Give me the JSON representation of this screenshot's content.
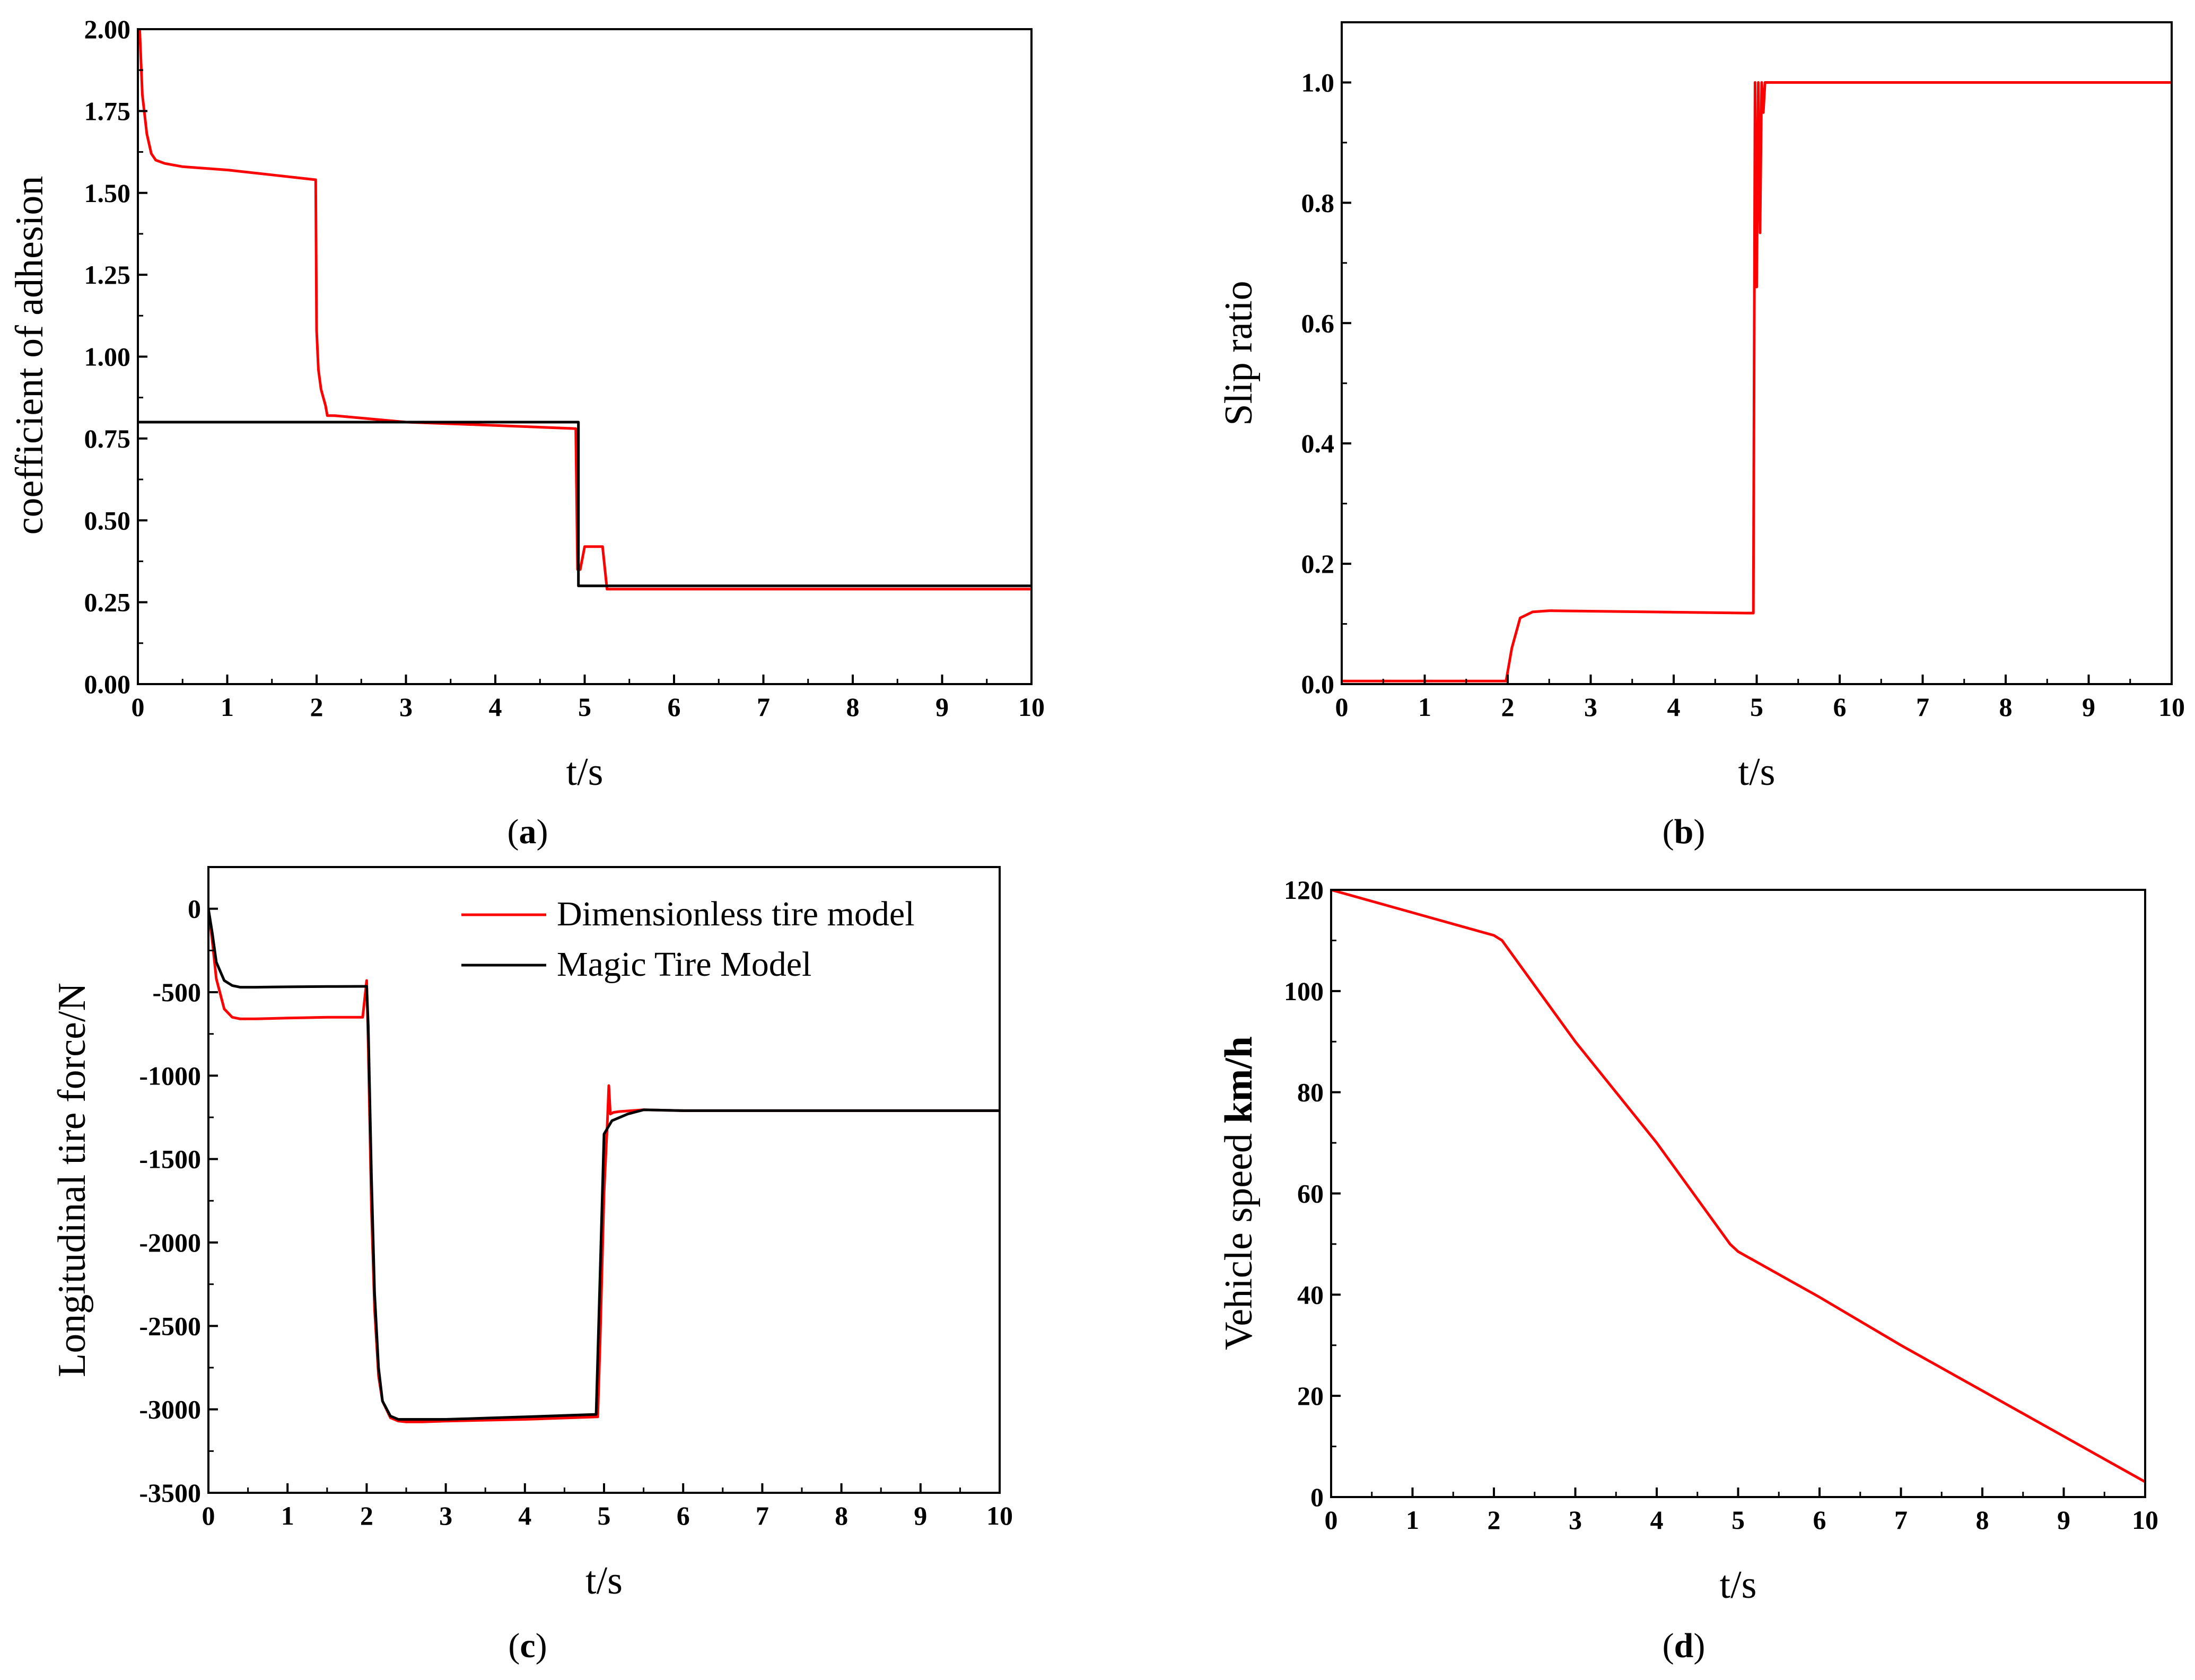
{
  "chart_data": [
    {
      "type": "line",
      "panel": "a",
      "caption_letter": "a",
      "xlabel": "t/s",
      "ylabel": "coefficient of adhesion",
      "xlim": [
        0,
        10
      ],
      "ylim": [
        0,
        2.0
      ],
      "xticks": [
        "0",
        "1",
        "2",
        "3",
        "4",
        "5",
        "6",
        "7",
        "8",
        "9",
        "10"
      ],
      "yticks": [
        "0.00",
        "0.25",
        "0.50",
        "0.75",
        "1.00",
        "1.25",
        "1.50",
        "1.75",
        "2.00"
      ],
      "series": [
        {
          "name": "Dimensionless tire model",
          "color": "#ff0000",
          "x": [
            0,
            0.02,
            0.05,
            0.1,
            0.15,
            0.2,
            0.3,
            0.5,
            1.0,
            1.5,
            1.99,
            2.0,
            2.02,
            2.05,
            2.1,
            2.12,
            2.2,
            3.0,
            4.0,
            4.9,
            4.92,
            4.95,
            5.0,
            5.1,
            5.2,
            5.25,
            6,
            7,
            8,
            9,
            10
          ],
          "y": [
            2.0,
            2.0,
            1.8,
            1.68,
            1.62,
            1.6,
            1.59,
            1.58,
            1.57,
            1.555,
            1.54,
            1.08,
            0.96,
            0.9,
            0.85,
            0.82,
            0.82,
            0.8,
            0.79,
            0.78,
            0.35,
            0.35,
            0.42,
            0.42,
            0.42,
            0.29,
            0.29,
            0.29,
            0.29,
            0.29,
            0.29
          ]
        },
        {
          "name": "Magic Tire Model",
          "color": "#000000",
          "x": [
            0,
            4.93,
            4.93,
            10
          ],
          "y": [
            0.8,
            0.8,
            0.3,
            0.3
          ]
        }
      ]
    },
    {
      "type": "line",
      "panel": "b",
      "caption_letter": "b",
      "xlabel": "t/s",
      "ylabel": "Slip ratio",
      "xlim": [
        0,
        10
      ],
      "ylim": [
        0,
        1.1
      ],
      "xticks": [
        "0",
        "1",
        "2",
        "3",
        "4",
        "5",
        "6",
        "7",
        "8",
        "9",
        "10"
      ],
      "yticks": [
        "0.0",
        "0.2",
        "0.4",
        "0.6",
        "0.8",
        "1.0"
      ],
      "series": [
        {
          "name": "Slip ratio",
          "color": "#ff0000",
          "x": [
            0,
            1.98,
            2.05,
            2.15,
            2.3,
            2.5,
            4.9,
            4.96,
            4.98,
            5.0,
            5.02,
            5.04,
            5.06,
            5.08,
            5.1,
            5.2,
            10
          ],
          "y": [
            0.005,
            0.005,
            0.06,
            0.11,
            0.12,
            0.122,
            0.118,
            0.118,
            1.0,
            0.66,
            1.0,
            0.75,
            1.0,
            0.95,
            1.0,
            1.0,
            1.0
          ]
        }
      ]
    },
    {
      "type": "line",
      "panel": "c",
      "caption_letter": "c",
      "xlabel": "t/s",
      "ylabel": "Longitudinal tire force/N",
      "xlim": [
        0,
        10
      ],
      "ylim": [
        -3500,
        250
      ],
      "xticks": [
        "0",
        "1",
        "2",
        "3",
        "4",
        "5",
        "6",
        "7",
        "8",
        "9",
        "10"
      ],
      "yticks": [
        "0",
        "-500",
        "-1000",
        "-1500",
        "-2000",
        "-2500",
        "-3000",
        "-3500"
      ],
      "legend": {
        "position": "top-right",
        "entries": [
          "Dimensionless tire model",
          "Magic Tire Model"
        ]
      },
      "series": [
        {
          "name": "Dimensionless tire model",
          "color": "#ff0000",
          "x": [
            0,
            0.05,
            0.1,
            0.2,
            0.3,
            0.4,
            0.6,
            1.0,
            1.5,
            1.95,
            2.0,
            2.02,
            2.06,
            2.1,
            2.15,
            2.2,
            2.3,
            2.4,
            2.5,
            2.7,
            3.0,
            4.0,
            4.92,
            4.95,
            5.0,
            5.04,
            5.06,
            5.08,
            5.12,
            5.2,
            5.5,
            6,
            7,
            8,
            9,
            10
          ],
          "y": [
            0,
            -200,
            -420,
            -600,
            -650,
            -660,
            -660,
            -655,
            -650,
            -650,
            -430,
            -820,
            -1800,
            -2400,
            -2800,
            -2950,
            -3050,
            -3070,
            -3075,
            -3075,
            -3070,
            -3060,
            -3045,
            -2600,
            -1700,
            -1300,
            -1060,
            -1230,
            -1220,
            -1215,
            -1205,
            -1210,
            -1210,
            -1210,
            -1210,
            -1210
          ]
        },
        {
          "name": "Magic Tire Model",
          "color": "#000000",
          "x": [
            0,
            0.05,
            0.1,
            0.2,
            0.3,
            0.4,
            0.6,
            1.0,
            1.5,
            1.95,
            2.0,
            2.02,
            2.06,
            2.1,
            2.15,
            2.2,
            2.3,
            2.4,
            2.5,
            3.0,
            4.0,
            4.9,
            4.95,
            5.0,
            5.1,
            5.3,
            5.5,
            6,
            7,
            8,
            9,
            10
          ],
          "y": [
            0,
            -150,
            -320,
            -430,
            -460,
            -470,
            -470,
            -468,
            -466,
            -465,
            -465,
            -700,
            -1600,
            -2300,
            -2750,
            -2950,
            -3040,
            -3060,
            -3060,
            -3060,
            -3045,
            -3030,
            -2200,
            -1350,
            -1270,
            -1230,
            -1205,
            -1210,
            -1210,
            -1210,
            -1210,
            -1210
          ]
        }
      ]
    },
    {
      "type": "line",
      "panel": "d",
      "caption_letter": "d",
      "xlabel": "t/s",
      "ylabel_regular": "Vehicle speed ",
      "ylabel_bold": "km/h",
      "xlim": [
        0,
        10
      ],
      "ylim": [
        0,
        120
      ],
      "xticks": [
        "0",
        "1",
        "2",
        "3",
        "4",
        "5",
        "6",
        "7",
        "8",
        "9",
        "10"
      ],
      "yticks": [
        "0",
        "20",
        "40",
        "60",
        "80",
        "100",
        "120"
      ],
      "series": [
        {
          "name": "Vehicle speed",
          "color": "#ff0000",
          "x": [
            0,
            2.0,
            2.1,
            3.0,
            4.0,
            4.9,
            5.0,
            6.0,
            7.0,
            8.0,
            9.0,
            10.0
          ],
          "y": [
            120,
            111,
            110,
            90,
            70,
            50,
            48.5,
            39.5,
            30,
            21,
            12,
            3
          ]
        }
      ]
    }
  ]
}
